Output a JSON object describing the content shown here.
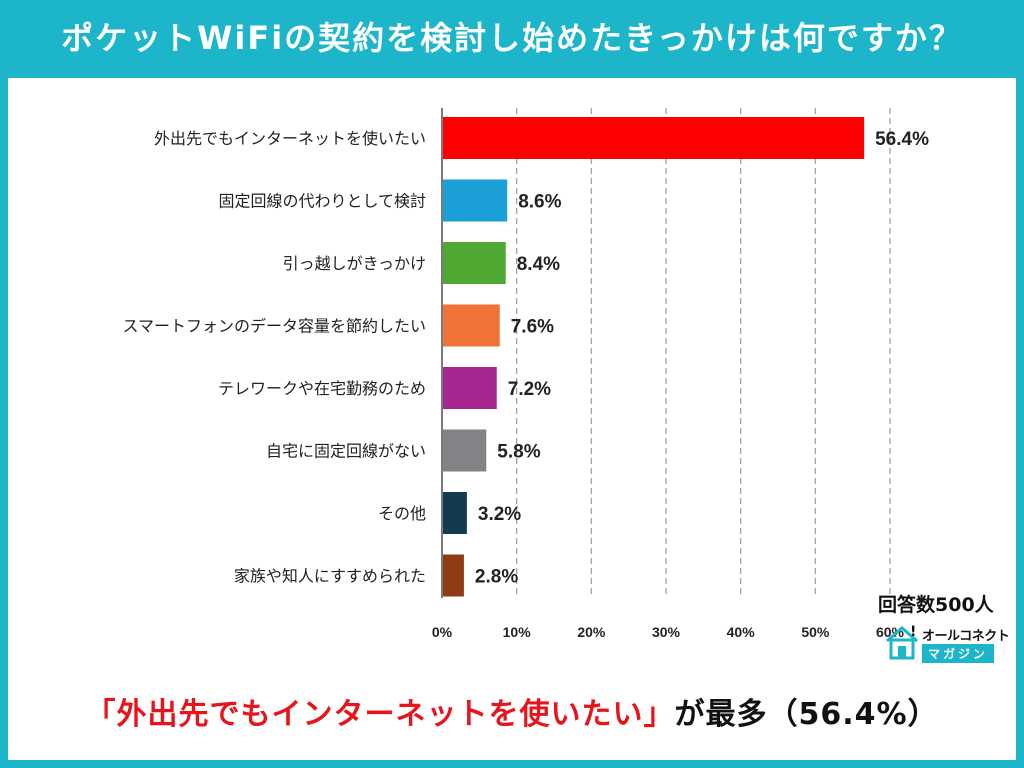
{
  "header": {
    "title": "ポケットWiFiの契約を検討し始めたきっかけは何ですか？"
  },
  "respondents": "回答数500人",
  "logo": {
    "top_text": "オールコネクト",
    "bottom_text": "マガジン",
    "icon": "house-icon"
  },
  "banner": {
    "quote": "「外出先でもインターネットを使いたい」",
    "rest": "が最多（56.4%）"
  },
  "colors": {
    "header_bg": "#1cb5c9",
    "gridline": "#999999",
    "banner_highlight": "#e8141b"
  },
  "chart_data": {
    "type": "bar",
    "orientation": "horizontal",
    "categories": [
      "外出先でもインターネットを使いたい",
      "固定回線の代わりとして検討",
      "引っ越しがきっかけ",
      "スマートフォンのデータ容量を節約したい",
      "テレワークや在宅勤務のため",
      "自宅に固定回線がない",
      "その他",
      "家族や知人にすすめられた"
    ],
    "values": [
      56.4,
      8.6,
      8.4,
      7.6,
      7.2,
      5.8,
      3.2,
      2.8
    ],
    "value_labels": [
      "56.4%",
      "8.6%",
      "8.4%",
      "7.6%",
      "7.2%",
      "5.8%",
      "3.2%",
      "2.8%"
    ],
    "bar_colors": [
      "#ff0000",
      "#1a9fd6",
      "#4ea832",
      "#ef7236",
      "#a5268f",
      "#858287",
      "#123b52",
      "#8f3c14"
    ],
    "xlim": [
      0,
      60
    ],
    "xticks": [
      0,
      10,
      20,
      30,
      40,
      50,
      60
    ],
    "xtick_labels": [
      "0%",
      "10%",
      "20%",
      "30%",
      "40%",
      "50%",
      "60%"
    ],
    "grid": "vertical dashed"
  }
}
